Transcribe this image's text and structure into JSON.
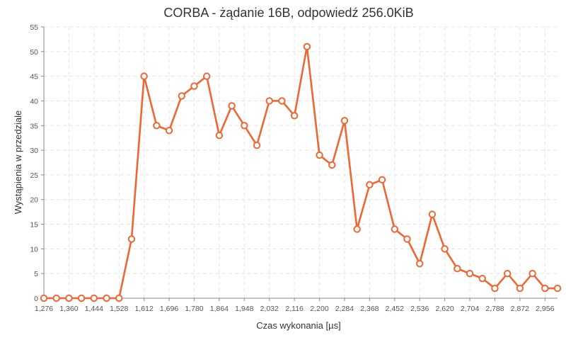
{
  "chart_data": {
    "type": "line",
    "title": "CORBA - żądanie 16B, odpowiedź 256.0KiB",
    "xlabel": "Czas wykonania [µs]",
    "ylabel": "Wystąpienia w przedziale",
    "xlim": [
      1276,
      2998
    ],
    "ylim": [
      0,
      55
    ],
    "x_ticks": [
      "1,276",
      "1,360",
      "1,444",
      "1,528",
      "1,612",
      "1,696",
      "1,780",
      "1,864",
      "1,948",
      "2,032",
      "2,116",
      "2,200",
      "2,284",
      "2,368",
      "2,452",
      "2,536",
      "2,620",
      "2,704",
      "2,788",
      "2,872",
      "2,956"
    ],
    "y_ticks": [
      "0",
      "5",
      "10",
      "15",
      "20",
      "25",
      "30",
      "35",
      "40",
      "45",
      "50",
      "55"
    ],
    "grid": true,
    "color": "#ee6633",
    "series": [
      {
        "x": [
          1276,
          1318,
          1360,
          1402,
          1444,
          1486,
          1528,
          1570,
          1612,
          1654,
          1696,
          1738,
          1780,
          1822,
          1864,
          1906,
          1948,
          1990,
          2032,
          2074,
          2116,
          2158,
          2200,
          2242,
          2284,
          2326,
          2368,
          2410,
          2452,
          2494,
          2536,
          2578,
          2620,
          2662,
          2704,
          2746,
          2788,
          2830,
          2872,
          2914,
          2956,
          2998
        ],
        "values": [
          0,
          0,
          0,
          0,
          0,
          0,
          0,
          12,
          45,
          35,
          34,
          41,
          43,
          45,
          33,
          39,
          35,
          31,
          40,
          40,
          37,
          51,
          29,
          27,
          36,
          14,
          23,
          24,
          14,
          12,
          7,
          17,
          10,
          6,
          5,
          4,
          2,
          5,
          2,
          5,
          2,
          2
        ]
      }
    ]
  }
}
